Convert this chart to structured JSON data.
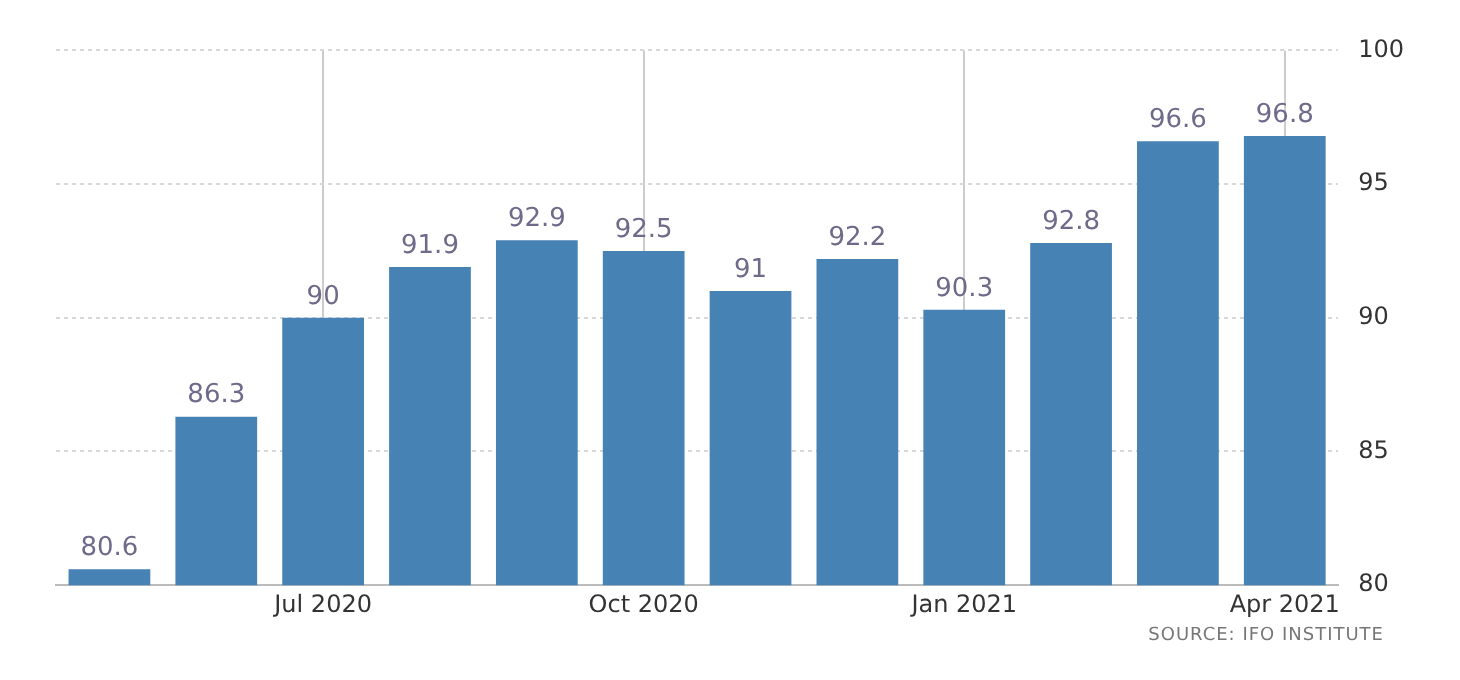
{
  "chart_data": {
    "type": "bar",
    "categories": [
      null,
      null,
      "Jul 2020",
      null,
      null,
      "Oct 2020",
      null,
      null,
      "Jan 2021",
      null,
      null,
      "Apr 2021"
    ],
    "values": [
      80.6,
      86.3,
      90,
      91.9,
      92.9,
      92.5,
      91,
      92.2,
      90.3,
      92.8,
      96.6,
      96.8
    ],
    "color": "#4682b4",
    "ylim": [
      80,
      100
    ],
    "yticks": [
      80,
      85,
      90,
      95,
      100
    ],
    "grid": true,
    "data_labels": true,
    "annotations": [
      "SOURCE: IFO INSTITUTE"
    ]
  }
}
